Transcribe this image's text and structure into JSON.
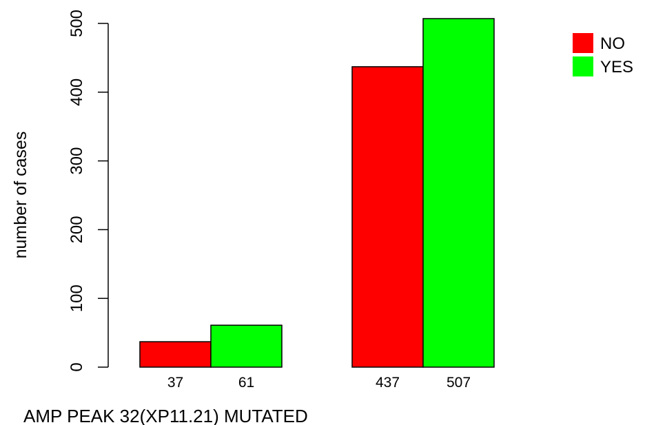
{
  "chart_data": {
    "type": "bar",
    "xlabel": "AMP PEAK 32(XP11.21) MUTATED",
    "ylabel": "number of cases",
    "ylim": [
      0,
      500
    ],
    "y_ticks": [
      0,
      100,
      200,
      300,
      400,
      500
    ],
    "grid": false,
    "legend_position": "top-right",
    "series": [
      {
        "name": "NO",
        "color": "#ff0000",
        "values": [
          37,
          437
        ]
      },
      {
        "name": "YES",
        "color": "#00ff00",
        "values": [
          61,
          507
        ]
      }
    ],
    "bar_labels": [
      [
        "37",
        "61"
      ],
      [
        "437",
        "507"
      ]
    ]
  }
}
